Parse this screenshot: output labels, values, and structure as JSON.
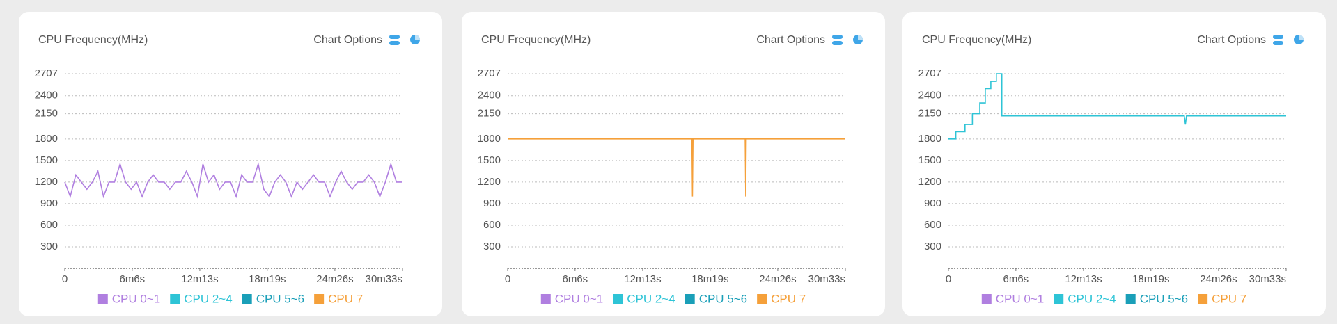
{
  "chart_data": [
    {
      "type": "line",
      "title": "CPU Frequency(MHz)",
      "chart_options": "Chart Options",
      "xlim": [
        0,
        1833
      ],
      "xticks": [
        0,
        {
          "value": 366,
          "label": "6m6s"
        },
        {
          "value": 733,
          "label": "12m13s"
        },
        {
          "value": 1099,
          "label": "18m19s"
        },
        {
          "value": 1466,
          "label": "24m26s"
        },
        {
          "value": 1833,
          "label": "30m33s"
        }
      ],
      "ylim": [
        0,
        2707
      ],
      "yticks": [
        300,
        600,
        900,
        1200,
        1500,
        1800,
        2150,
        2400,
        2707
      ],
      "grid": true,
      "series": [
        {
          "name": "CPU 0~1",
          "color": "#b07fe0",
          "x": [
            0,
            30,
            60,
            90,
            120,
            150,
            180,
            210,
            240,
            270,
            300,
            330,
            360,
            390,
            420,
            450,
            480,
            510,
            540,
            570,
            600,
            630,
            660,
            690,
            720,
            750,
            780,
            810,
            840,
            870,
            900,
            930,
            960,
            990,
            1020,
            1050,
            1080,
            1110,
            1140,
            1170,
            1200,
            1230,
            1260,
            1290,
            1320,
            1350,
            1380,
            1410,
            1440,
            1470,
            1500,
            1530,
            1560,
            1590,
            1620,
            1650,
            1680,
            1710,
            1740,
            1770,
            1800,
            1830
          ],
          "values": [
            1200,
            1000,
            1300,
            1200,
            1100,
            1200,
            1350,
            1000,
            1200,
            1200,
            1450,
            1200,
            1100,
            1200,
            1000,
            1200,
            1300,
            1200,
            1200,
            1100,
            1200,
            1200,
            1350,
            1200,
            1000,
            1450,
            1200,
            1300,
            1100,
            1200,
            1200,
            1000,
            1300,
            1200,
            1200,
            1450,
            1100,
            1000,
            1200,
            1300,
            1200,
            1000,
            1200,
            1100,
            1200,
            1300,
            1200,
            1200,
            1000,
            1200,
            1350,
            1200,
            1100,
            1200,
            1200,
            1300,
            1200,
            1000,
            1200,
            1450,
            1200,
            1200
          ]
        },
        {
          "name": "CPU 2~4",
          "color": "#2ec4d6",
          "x": [],
          "values": []
        },
        {
          "name": "CPU 5~6",
          "color": "#1a9fb8",
          "x": [],
          "values": []
        },
        {
          "name": "CPU 7",
          "color": "#f5a03a",
          "x": [],
          "values": []
        }
      ]
    },
    {
      "type": "line",
      "title": "CPU Frequency(MHz)",
      "chart_options": "Chart Options",
      "xlim": [
        0,
        1833
      ],
      "xticks": [
        0,
        {
          "value": 366,
          "label": "6m6s"
        },
        {
          "value": 733,
          "label": "12m13s"
        },
        {
          "value": 1099,
          "label": "18m19s"
        },
        {
          "value": 1466,
          "label": "24m26s"
        },
        {
          "value": 1833,
          "label": "30m33s"
        }
      ],
      "ylim": [
        0,
        2707
      ],
      "yticks": [
        300,
        600,
        900,
        1200,
        1500,
        1800,
        2150,
        2400,
        2707
      ],
      "grid": true,
      "series": [
        {
          "name": "CPU 0~1",
          "color": "#b07fe0",
          "x": [],
          "values": []
        },
        {
          "name": "CPU 2~4",
          "color": "#2ec4d6",
          "x": [],
          "values": []
        },
        {
          "name": "CPU 5~6",
          "color": "#1a9fb8",
          "x": [],
          "values": []
        },
        {
          "name": "CPU 7",
          "color": "#f5a03a",
          "x": [
            0,
            1000,
            1003,
            1006,
            1289,
            1292,
            1295,
            1833
          ],
          "values": [
            1800,
            1800,
            1000,
            1800,
            1800,
            1000,
            1800,
            1800
          ]
        }
      ]
    },
    {
      "type": "line",
      "title": "CPU Frequency(MHz)",
      "chart_options": "Chart Options",
      "xlim": [
        0,
        1833
      ],
      "xticks": [
        0,
        {
          "value": 366,
          "label": "6m6s"
        },
        {
          "value": 733,
          "label": "12m13s"
        },
        {
          "value": 1099,
          "label": "18m19s"
        },
        {
          "value": 1466,
          "label": "24m26s"
        },
        {
          "value": 1833,
          "label": "30m33s"
        }
      ],
      "ylim": [
        0,
        2707
      ],
      "yticks": [
        300,
        600,
        900,
        1200,
        1500,
        1800,
        2150,
        2400,
        2707
      ],
      "grid": true,
      "series": [
        {
          "name": "CPU 0~1",
          "color": "#b07fe0",
          "x": [],
          "values": []
        },
        {
          "name": "CPU 2~4",
          "color": "#2ec4d6",
          "x": [
            0,
            40,
            40,
            90,
            90,
            130,
            130,
            170,
            170,
            200,
            200,
            230,
            230,
            260,
            260,
            290,
            290,
            1280,
            1286,
            1292,
            1833
          ],
          "values": [
            1800,
            1800,
            1900,
            1900,
            2000,
            2000,
            2150,
            2150,
            2300,
            2300,
            2500,
            2500,
            2600,
            2600,
            2707,
            2707,
            2120,
            2120,
            2000,
            2120,
            2120
          ]
        },
        {
          "name": "CPU 5~6",
          "color": "#1a9fb8",
          "x": [],
          "values": []
        },
        {
          "name": "CPU 7",
          "color": "#f5a03a",
          "x": [],
          "values": []
        }
      ]
    }
  ]
}
